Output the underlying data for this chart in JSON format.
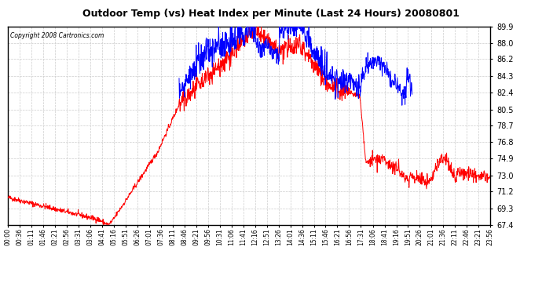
{
  "title": "Outdoor Temp (vs) Heat Index per Minute (Last 24 Hours) 20080801",
  "copyright": "Copyright 2008 Cartronics.com",
  "background_color": "#ffffff",
  "plot_bg_color": "#ffffff",
  "grid_color": "#cccccc",
  "red_line_color": "#ff0000",
  "blue_line_color": "#0000ff",
  "ylim": [
    67.4,
    89.9
  ],
  "yticks": [
    67.4,
    69.3,
    71.2,
    73.0,
    74.9,
    76.8,
    78.7,
    80.5,
    82.4,
    84.3,
    86.2,
    88.0,
    89.9
  ],
  "xtick_labels": [
    "00:00",
    "00:36",
    "01:11",
    "01:46",
    "02:21",
    "02:56",
    "03:31",
    "03:06",
    "04:41",
    "05:16",
    "05:51",
    "06:26",
    "07:01",
    "07:36",
    "08:11",
    "08:46",
    "09:21",
    "09:56",
    "10:31",
    "11:06",
    "11:41",
    "12:16",
    "12:51",
    "13:26",
    "14:01",
    "14:36",
    "15:11",
    "15:46",
    "16:21",
    "16:56",
    "17:31",
    "18:06",
    "18:41",
    "19:16",
    "19:51",
    "20:26",
    "21:01",
    "21:36",
    "22:11",
    "22:46",
    "23:21",
    "23:56"
  ],
  "num_points": 1440
}
